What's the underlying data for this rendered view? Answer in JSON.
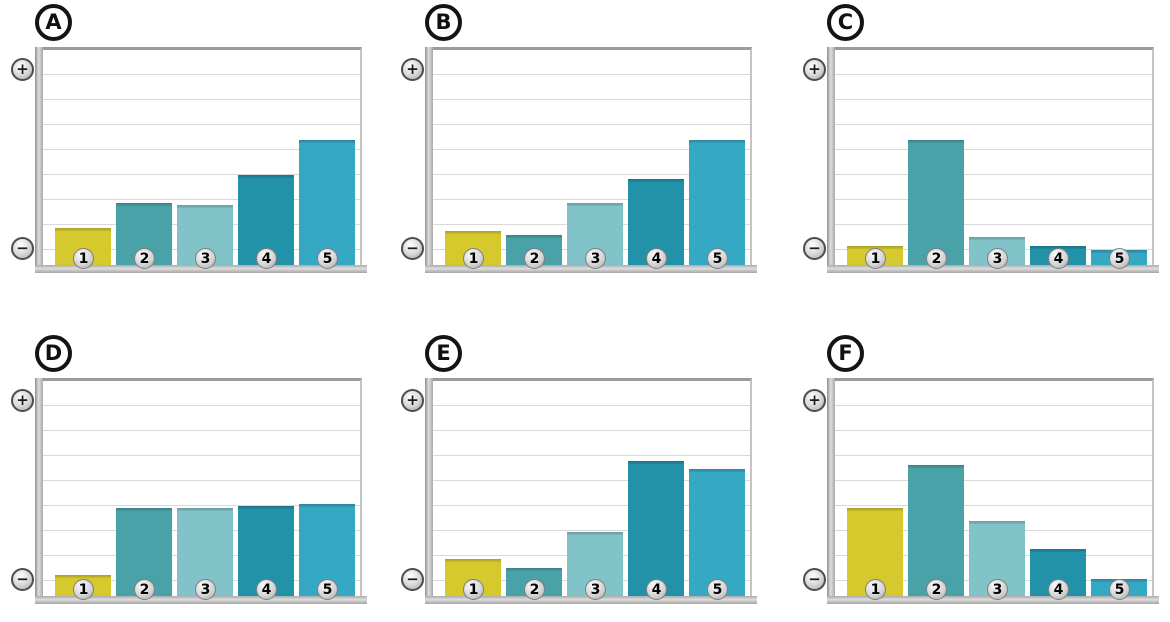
{
  "axis": {
    "plus_symbol": "+",
    "minus_symbol": "−"
  },
  "bar_labels": [
    "1",
    "2",
    "3",
    "4",
    "5"
  ],
  "bar_colors": [
    "#d5c92e",
    "#4aa2a9",
    "#82c3c9",
    "#2292a8",
    "#35a8c3"
  ],
  "colors": {
    "grid": "#d9d9d9",
    "axis_gray": "#a9a9a9",
    "badge_outline": "#141414",
    "background": "#ffffff"
  },
  "chart_data": [
    {
      "type": "bar",
      "panel": "A",
      "categories": [
        "1",
        "2",
        "3",
        "4",
        "5"
      ],
      "values_pct": [
        17,
        29,
        28,
        42,
        58
      ],
      "title": "",
      "xlabel": "",
      "ylabel": "unlabeled axis (− at bottom, + at top)",
      "ylim": [
        0,
        100
      ],
      "grid": true
    },
    {
      "type": "bar",
      "panel": "B",
      "categories": [
        "1",
        "2",
        "3",
        "4",
        "5"
      ],
      "values_pct": [
        16,
        14,
        29,
        40,
        58
      ],
      "title": "",
      "xlabel": "",
      "ylabel": "unlabeled axis (− at bottom, + at top)",
      "ylim": [
        0,
        100
      ],
      "grid": true
    },
    {
      "type": "bar",
      "panel": "C",
      "categories": [
        "1",
        "2",
        "3",
        "4",
        "5"
      ],
      "values_pct": [
        9,
        58,
        13,
        9,
        7
      ],
      "title": "",
      "xlabel": "",
      "ylabel": "unlabeled axis (− at bottom, + at top)",
      "ylim": [
        0,
        100
      ],
      "grid": true
    },
    {
      "type": "bar",
      "panel": "D",
      "categories": [
        "1",
        "2",
        "3",
        "4",
        "5"
      ],
      "values_pct": [
        10,
        41,
        41,
        42,
        43
      ],
      "title": "",
      "xlabel": "",
      "ylabel": "unlabeled axis (− at bottom, + at top)",
      "ylim": [
        0,
        100
      ],
      "grid": true
    },
    {
      "type": "bar",
      "panel": "E",
      "categories": [
        "1",
        "2",
        "3",
        "4",
        "5"
      ],
      "values_pct": [
        17,
        13,
        30,
        63,
        59
      ],
      "title": "",
      "xlabel": "",
      "ylabel": "unlabeled axis (− at bottom, + at top)",
      "ylim": [
        0,
        100
      ],
      "grid": true
    },
    {
      "type": "bar",
      "panel": "F",
      "categories": [
        "1",
        "2",
        "3",
        "4",
        "5"
      ],
      "values_pct": [
        41,
        61,
        35,
        22,
        8
      ],
      "title": "",
      "xlabel": "",
      "ylabel": "unlabeled axis (− at bottom, + at top)",
      "ylim": [
        0,
        100
      ],
      "grid": true
    }
  ]
}
